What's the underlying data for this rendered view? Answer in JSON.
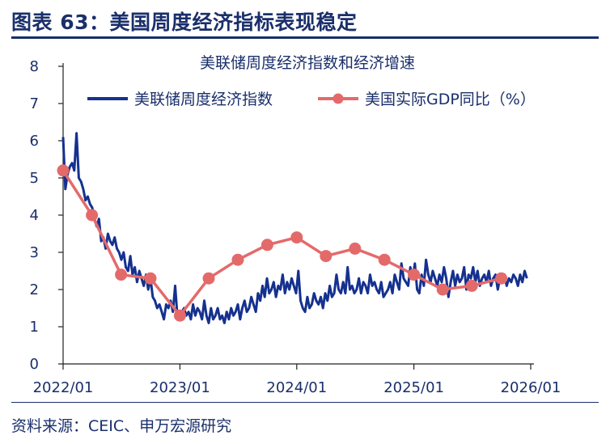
{
  "figure_title": "图表 63：美国周度经济指标表现稳定",
  "source_note": "资料来源：CEIC、申万宏源研究",
  "colors": {
    "weekly_index": "#15318f",
    "gdp_yoy": "#e46a6a",
    "text": "#1a2f6b"
  },
  "chart_data": {
    "type": "line",
    "title": "美联储周度经济指数和经济增速",
    "xlabel": "",
    "ylabel": "",
    "ylim": [
      0,
      8
    ],
    "yticks": [
      0,
      1,
      2,
      3,
      4,
      5,
      6,
      7,
      8
    ],
    "xlim": [
      "2022/01",
      "2026/01"
    ],
    "xticks": [
      "2022/01",
      "2023/01",
      "2024/01",
      "2025/01",
      "2026/01"
    ],
    "grid": false,
    "legend_position": "top",
    "series": [
      {
        "name": "美联储周度经济指数",
        "style": "line",
        "x": [
          "2022-01-01",
          "2022-01-08",
          "2022-01-15",
          "2022-01-22",
          "2022-01-29",
          "2022-02-05",
          "2022-02-12",
          "2022-02-19",
          "2022-02-26",
          "2022-03-05",
          "2022-03-12",
          "2022-03-19",
          "2022-03-26",
          "2022-04-02",
          "2022-04-09",
          "2022-04-16",
          "2022-04-23",
          "2022-04-30",
          "2022-05-07",
          "2022-05-14",
          "2022-05-21",
          "2022-05-28",
          "2022-06-04",
          "2022-06-11",
          "2022-06-18",
          "2022-06-25",
          "2022-07-02",
          "2022-07-09",
          "2022-07-16",
          "2022-07-23",
          "2022-07-30",
          "2022-08-06",
          "2022-08-13",
          "2022-08-20",
          "2022-08-27",
          "2022-09-03",
          "2022-09-10",
          "2022-09-17",
          "2022-09-24",
          "2022-10-01",
          "2022-10-08",
          "2022-10-15",
          "2022-10-22",
          "2022-10-29",
          "2022-11-05",
          "2022-11-12",
          "2022-11-19",
          "2022-11-26",
          "2022-12-03",
          "2022-12-10",
          "2022-12-17",
          "2022-12-24",
          "2022-12-31",
          "2023-01-07",
          "2023-01-14",
          "2023-01-21",
          "2023-01-28",
          "2023-02-04",
          "2023-02-11",
          "2023-02-18",
          "2023-02-25",
          "2023-03-04",
          "2023-03-11",
          "2023-03-18",
          "2023-03-25",
          "2023-04-01",
          "2023-04-08",
          "2023-04-15",
          "2023-04-22",
          "2023-04-29",
          "2023-05-06",
          "2023-05-13",
          "2023-05-20",
          "2023-05-27",
          "2023-06-03",
          "2023-06-10",
          "2023-06-17",
          "2023-06-24",
          "2023-07-01",
          "2023-07-08",
          "2023-07-15",
          "2023-07-22",
          "2023-07-29",
          "2023-08-05",
          "2023-08-12",
          "2023-08-19",
          "2023-08-26",
          "2023-09-02",
          "2023-09-09",
          "2023-09-16",
          "2023-09-23",
          "2023-09-30",
          "2023-10-07",
          "2023-10-14",
          "2023-10-21",
          "2023-10-28",
          "2023-11-04",
          "2023-11-11",
          "2023-11-18",
          "2023-11-25",
          "2023-12-02",
          "2023-12-09",
          "2023-12-16",
          "2023-12-23",
          "2023-12-30",
          "2024-01-06",
          "2024-01-13",
          "2024-01-20",
          "2024-01-27",
          "2024-02-03",
          "2024-02-10",
          "2024-02-17",
          "2024-02-24",
          "2024-03-02",
          "2024-03-09",
          "2024-03-16",
          "2024-03-23",
          "2024-03-30",
          "2024-04-06",
          "2024-04-13",
          "2024-04-20",
          "2024-04-27",
          "2024-05-04",
          "2024-05-11",
          "2024-05-18",
          "2024-05-25",
          "2024-06-01",
          "2024-06-08",
          "2024-06-15",
          "2024-06-22",
          "2024-06-29",
          "2024-07-06",
          "2024-07-13",
          "2024-07-20",
          "2024-07-27",
          "2024-08-03",
          "2024-08-10",
          "2024-08-17",
          "2024-08-24",
          "2024-08-31",
          "2024-09-07",
          "2024-09-14",
          "2024-09-21",
          "2024-09-28",
          "2024-10-05",
          "2024-10-12",
          "2024-10-19",
          "2024-10-26",
          "2024-11-02",
          "2024-11-09",
          "2024-11-16",
          "2024-11-23",
          "2024-11-30",
          "2024-12-07",
          "2024-12-14",
          "2024-12-21",
          "2024-12-28",
          "2025-01-04",
          "2025-01-11",
          "2025-01-18",
          "2025-01-25",
          "2025-02-01",
          "2025-02-08",
          "2025-02-15",
          "2025-02-22",
          "2025-03-01",
          "2025-03-08",
          "2025-03-15",
          "2025-03-22",
          "2025-03-29",
          "2025-04-05",
          "2025-04-12",
          "2025-04-19",
          "2025-04-26",
          "2025-05-03",
          "2025-05-10",
          "2025-05-17",
          "2025-05-24",
          "2025-05-31",
          "2025-06-07",
          "2025-06-14",
          "2025-06-21",
          "2025-06-28",
          "2025-07-05",
          "2025-07-12",
          "2025-07-19",
          "2025-07-26",
          "2025-08-02",
          "2025-08-09",
          "2025-08-16",
          "2025-08-23",
          "2025-08-30",
          "2025-09-06",
          "2025-09-13",
          "2025-09-20",
          "2025-09-27",
          "2025-10-04",
          "2025-10-11",
          "2025-10-18",
          "2025-10-25",
          "2025-11-01",
          "2025-11-08",
          "2025-11-15",
          "2025-11-22",
          "2025-11-29",
          "2025-12-06",
          "2025-12-13",
          "2025-12-20"
        ],
        "values": [
          6.1,
          4.7,
          5.1,
          5.3,
          5.4,
          5.2,
          6.2,
          5.0,
          4.9,
          4.7,
          4.4,
          4.5,
          4.3,
          4.2,
          3.9,
          3.7,
          3.9,
          3.3,
          3.4,
          3.1,
          3.5,
          3.3,
          3.2,
          3.4,
          3.1,
          3.0,
          2.8,
          3.0,
          2.6,
          2.5,
          2.9,
          2.4,
          2.6,
          2.2,
          2.5,
          2.3,
          2.1,
          2.4,
          2.0,
          2.3,
          1.8,
          1.7,
          1.5,
          1.6,
          1.4,
          1.2,
          1.6,
          1.5,
          1.7,
          1.4,
          2.1,
          1.3,
          1.2,
          1.4,
          1.5,
          1.3,
          1.4,
          1.2,
          1.6,
          1.3,
          1.5,
          1.4,
          1.2,
          1.7,
          1.3,
          1.1,
          1.5,
          1.2,
          1.3,
          1.5,
          1.2,
          1.3,
          1.1,
          1.4,
          1.2,
          1.5,
          1.3,
          1.4,
          1.6,
          1.2,
          1.5,
          1.7,
          1.4,
          1.5,
          1.8,
          1.6,
          1.4,
          1.9,
          1.7,
          2.1,
          1.8,
          2.3,
          1.9,
          2.0,
          2.2,
          1.8,
          2.1,
          2.0,
          2.4,
          1.9,
          2.2,
          2.0,
          2.3,
          2.1,
          1.9,
          2.5,
          1.7,
          1.5,
          1.4,
          1.8,
          1.5,
          1.6,
          1.9,
          1.7,
          1.6,
          1.8,
          1.5,
          1.9,
          1.7,
          2.1,
          1.8,
          1.9,
          2.4,
          2.0,
          1.9,
          2.2,
          1.9,
          2.6,
          2.0,
          2.1,
          1.9,
          2.0,
          2.3,
          1.9,
          2.2,
          2.1,
          1.9,
          2.4,
          2.1,
          2.2,
          2.0,
          1.9,
          2.2,
          1.8,
          1.9,
          2.0,
          2.2,
          1.9,
          2.4,
          2.2,
          2.0,
          2.7,
          2.3,
          2.2,
          2.1,
          2.6,
          2.3,
          2.7,
          2.0,
          1.9,
          2.4,
          2.1,
          2.8,
          2.4,
          2.2,
          2.5,
          2.3,
          2.1,
          2.4,
          2.2,
          2.6,
          2.3,
          1.8,
          2.2,
          2.5,
          2.1,
          2.4,
          2.2,
          2.3,
          2.6,
          2.0,
          2.4,
          2.3,
          2.6,
          2.2,
          2.5,
          2.1,
          2.3,
          2.4,
          2.2,
          2.5,
          2.1,
          2.3,
          2.4,
          2.0,
          2.3,
          2.2,
          2.4,
          2.1,
          2.3,
          2.2,
          2.4,
          2.3,
          2.1,
          2.4,
          2.2,
          2.5,
          2.3
        ]
      },
      {
        "name": "美国实际GDP同比（%）",
        "style": "line-marker",
        "x": [
          "2022-01-01",
          "2022-04-01",
          "2022-07-01",
          "2022-10-01",
          "2023-01-01",
          "2023-04-01",
          "2023-07-01",
          "2023-10-01",
          "2024-01-01",
          "2024-04-01",
          "2024-07-01",
          "2024-10-01",
          "2025-01-01",
          "2025-04-01",
          "2025-07-01",
          "2025-10-01"
        ],
        "values": [
          5.2,
          4.0,
          2.4,
          2.3,
          1.3,
          2.3,
          2.8,
          3.2,
          3.4,
          2.9,
          3.1,
          2.8,
          2.4,
          2.0,
          2.1,
          2.3
        ]
      }
    ]
  }
}
